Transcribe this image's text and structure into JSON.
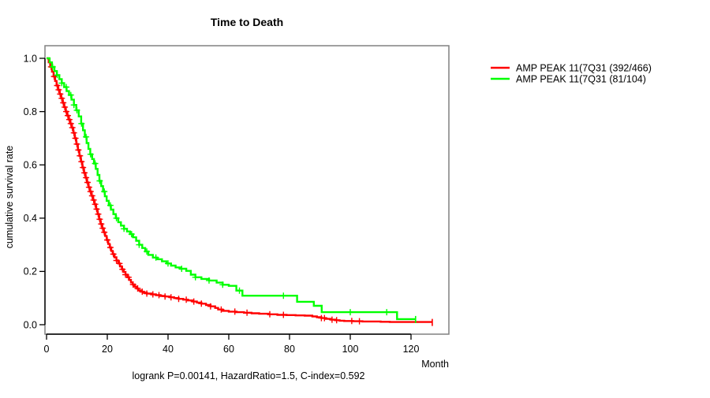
{
  "figure": {
    "title": "Time to Death",
    "x_axis_label": "Month",
    "y_axis_label": "cumulative survival rate",
    "footer_annotation": "logrank P=0.00141, HazardRatio=1.5, C-index=0.592"
  },
  "colors": {
    "background": "#ffffff",
    "box": "#808080",
    "axis": "#000000",
    "series1": "#ff0000",
    "series2": "#00ff00"
  },
  "chart_data": {
    "type": "line",
    "subtype": "kaplan_meier_step",
    "title": "Time to Death",
    "xlabel": "Month",
    "ylabel": "cumulative survival rate",
    "xlim": [
      0,
      132
    ],
    "ylim": [
      0,
      1.04
    ],
    "xticks": [
      0,
      20,
      40,
      60,
      80,
      100,
      120
    ],
    "yticks": [
      0.0,
      0.2,
      0.4,
      0.6,
      0.8,
      1.0
    ],
    "grid": false,
    "legend_position": "right-outside",
    "annotation": "logrank P=0.00141, HazardRatio=1.5, C-index=0.592",
    "series": [
      {
        "name": "AMP PEAK 11(7Q31 (392/466)",
        "color": "#ff0000",
        "end_month": 127,
        "end_tick": true,
        "points": [
          [
            0,
            1.0
          ],
          [
            0.7,
            0.985
          ],
          [
            1.2,
            0.968
          ],
          [
            1.8,
            0.95
          ],
          [
            2.3,
            0.932
          ],
          [
            2.8,
            0.915
          ],
          [
            3.3,
            0.898
          ],
          [
            3.8,
            0.882
          ],
          [
            4.3,
            0.866
          ],
          [
            4.8,
            0.85
          ],
          [
            5.3,
            0.833
          ],
          [
            5.8,
            0.817
          ],
          [
            6.3,
            0.8
          ],
          [
            6.8,
            0.785
          ],
          [
            7.3,
            0.77
          ],
          [
            7.8,
            0.755
          ],
          [
            8.3,
            0.74
          ],
          [
            8.8,
            0.72
          ],
          [
            9.3,
            0.7
          ],
          [
            9.8,
            0.678
          ],
          [
            10.3,
            0.656
          ],
          [
            10.8,
            0.634
          ],
          [
            11.3,
            0.612
          ],
          [
            11.8,
            0.59
          ],
          [
            12.3,
            0.57
          ],
          [
            12.8,
            0.552
          ],
          [
            13.3,
            0.534
          ],
          [
            13.8,
            0.516
          ],
          [
            14.3,
            0.5
          ],
          [
            14.8,
            0.484
          ],
          [
            15.3,
            0.468
          ],
          [
            15.8,
            0.452
          ],
          [
            16.3,
            0.434
          ],
          [
            16.8,
            0.415
          ],
          [
            17.3,
            0.396
          ],
          [
            17.8,
            0.378
          ],
          [
            18.3,
            0.362
          ],
          [
            18.8,
            0.347
          ],
          [
            19.3,
            0.333
          ],
          [
            19.8,
            0.318
          ],
          [
            20.3,
            0.303
          ],
          [
            20.8,
            0.29
          ],
          [
            21.3,
            0.277
          ],
          [
            21.8,
            0.265
          ],
          [
            22.4,
            0.253
          ],
          [
            23,
            0.241
          ],
          [
            23.6,
            0.23
          ],
          [
            24.2,
            0.219
          ],
          [
            24.8,
            0.208
          ],
          [
            25.4,
            0.198
          ],
          [
            26,
            0.188
          ],
          [
            26.6,
            0.178
          ],
          [
            27.2,
            0.168
          ],
          [
            27.8,
            0.159
          ],
          [
            28.4,
            0.151
          ],
          [
            29,
            0.143
          ],
          [
            29.6,
            0.136
          ],
          [
            30.2,
            0.129
          ],
          [
            31,
            0.124
          ],
          [
            32,
            0.12
          ],
          [
            33,
            0.117
          ],
          [
            34.5,
            0.114
          ],
          [
            36,
            0.111
          ],
          [
            37.5,
            0.108
          ],
          [
            39,
            0.106
          ],
          [
            40.5,
            0.103
          ],
          [
            42,
            0.1
          ],
          [
            43.5,
            0.097
          ],
          [
            45,
            0.094
          ],
          [
            46.5,
            0.091
          ],
          [
            48,
            0.087
          ],
          [
            49.5,
            0.083
          ],
          [
            51,
            0.079
          ],
          [
            52.5,
            0.074
          ],
          [
            54,
            0.069
          ],
          [
            55.5,
            0.063
          ],
          [
            56.5,
            0.057
          ],
          [
            58,
            0.052
          ],
          [
            60,
            0.049
          ],
          [
            62.5,
            0.047
          ],
          [
            65,
            0.045
          ],
          [
            67.5,
            0.043
          ],
          [
            70,
            0.041
          ],
          [
            73,
            0.039
          ],
          [
            76,
            0.037
          ],
          [
            79,
            0.036
          ],
          [
            82,
            0.035
          ],
          [
            85,
            0.034
          ],
          [
            87.5,
            0.031
          ],
          [
            89,
            0.028
          ],
          [
            90.5,
            0.025
          ],
          [
            92,
            0.022
          ],
          [
            93.5,
            0.019
          ],
          [
            95,
            0.017
          ],
          [
            96.5,
            0.015
          ],
          [
            98,
            0.014
          ],
          [
            101,
            0.013
          ],
          [
            104,
            0.012
          ],
          [
            110,
            0.011
          ],
          [
            113,
            0.01
          ]
        ],
        "censor_months": [
          1.5,
          2.5,
          3.5,
          4,
          4.5,
          5,
          5.5,
          6,
          6.5,
          7,
          7.5,
          8,
          8.5,
          9,
          9.5,
          10,
          10.5,
          11,
          11.5,
          12,
          12.5,
          13,
          13.5,
          14,
          14.5,
          15,
          15.5,
          16,
          16.5,
          17,
          17.5,
          18,
          18.5,
          19,
          20,
          21,
          22,
          23,
          24,
          25,
          26,
          27,
          28.5,
          30,
          31.5,
          33,
          35,
          37,
          39,
          41,
          43.5,
          46,
          48.5,
          51,
          54,
          57.5,
          62,
          66,
          73.5,
          78,
          90.5,
          91.5,
          94,
          95.5,
          100.5,
          103
        ]
      },
      {
        "name": "AMP PEAK 11(7Q31 (81/104)",
        "color": "#00ff00",
        "end_month": 121.5,
        "end_tick": true,
        "points": [
          [
            0,
            1.0
          ],
          [
            1,
            0.985
          ],
          [
            1.8,
            0.968
          ],
          [
            2.6,
            0.952
          ],
          [
            3.4,
            0.937
          ],
          [
            4.2,
            0.922
          ],
          [
            5,
            0.907
          ],
          [
            5.8,
            0.892
          ],
          [
            6.6,
            0.877
          ],
          [
            7.4,
            0.862
          ],
          [
            8.2,
            0.845
          ],
          [
            9,
            0.825
          ],
          [
            9.8,
            0.805
          ],
          [
            10.6,
            0.782
          ],
          [
            11.4,
            0.755
          ],
          [
            12,
            0.73
          ],
          [
            12.6,
            0.705
          ],
          [
            13.2,
            0.682
          ],
          [
            13.8,
            0.66
          ],
          [
            14.4,
            0.64
          ],
          [
            15,
            0.622
          ],
          [
            15.6,
            0.605
          ],
          [
            16.2,
            0.585
          ],
          [
            16.8,
            0.562
          ],
          [
            17.4,
            0.54
          ],
          [
            18,
            0.52
          ],
          [
            18.6,
            0.5
          ],
          [
            19.2,
            0.482
          ],
          [
            19.8,
            0.465
          ],
          [
            20.5,
            0.448
          ],
          [
            21.2,
            0.432
          ],
          [
            22,
            0.415
          ],
          [
            22.8,
            0.4
          ],
          [
            23.6,
            0.385
          ],
          [
            24.5,
            0.372
          ],
          [
            25.5,
            0.36
          ],
          [
            26.5,
            0.35
          ],
          [
            27.5,
            0.34
          ],
          [
            28.5,
            0.328
          ],
          [
            29.5,
            0.315
          ],
          [
            30.5,
            0.3
          ],
          [
            31.5,
            0.288
          ],
          [
            32.5,
            0.275
          ],
          [
            33.5,
            0.262
          ],
          [
            35,
            0.252
          ],
          [
            36.5,
            0.246
          ],
          [
            38,
            0.238
          ],
          [
            39.5,
            0.23
          ],
          [
            41,
            0.222
          ],
          [
            42.5,
            0.215
          ],
          [
            44,
            0.21
          ],
          [
            46,
            0.202
          ],
          [
            47.5,
            0.188
          ],
          [
            49,
            0.178
          ],
          [
            51,
            0.172
          ],
          [
            53.5,
            0.166
          ],
          [
            56,
            0.158
          ],
          [
            58,
            0.15
          ],
          [
            60,
            0.146
          ],
          [
            62.5,
            0.128
          ],
          [
            64.5,
            0.109
          ],
          [
            82.5,
            0.086
          ],
          [
            88,
            0.071
          ],
          [
            90.6,
            0.047
          ],
          [
            115.4,
            0.021
          ]
        ],
        "censor_months": [
          2,
          3.5,
          5,
          6.5,
          8,
          9,
          10,
          11.5,
          13,
          14.5,
          16,
          17.5,
          19,
          21,
          23,
          25.5,
          28,
          30.5,
          33,
          36,
          40,
          44.5,
          49,
          53.5,
          58,
          63.5,
          78,
          100,
          112
        ]
      }
    ]
  }
}
